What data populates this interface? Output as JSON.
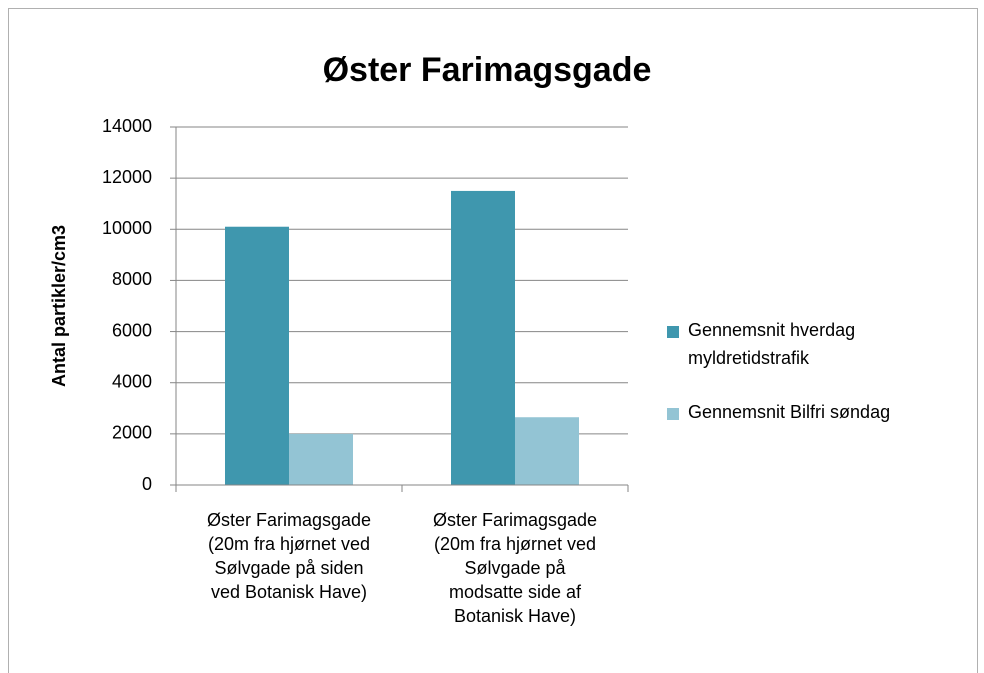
{
  "chart_data": {
    "type": "bar",
    "title": "Øster Farimagsgade",
    "y_label": "Antal partikler/cm3",
    "categories": [
      "Øster Farimagsgade\n(20m fra hjørnet ved\nSølvgade på siden\nved Botanisk Have)",
      "Øster Farimagsgade\n(20m fra hjørnet ved\nSølvgade på\nmodsatte side af\nBotanisk Have)"
    ],
    "series": [
      {
        "name": "Gennemsnit hverdag myldretidstrafik",
        "color": "#3f97ae",
        "values": [
          10100,
          11500
        ]
      },
      {
        "name": "Gennemsnit Bilfri søndag",
        "color": "#93c4d4",
        "values": [
          2000,
          2650
        ]
      }
    ],
    "ylim": [
      0,
      14000
    ],
    "yticks": [
      0,
      2000,
      4000,
      6000,
      8000,
      10000,
      12000,
      14000
    ],
    "grid": true,
    "legend": "right"
  }
}
